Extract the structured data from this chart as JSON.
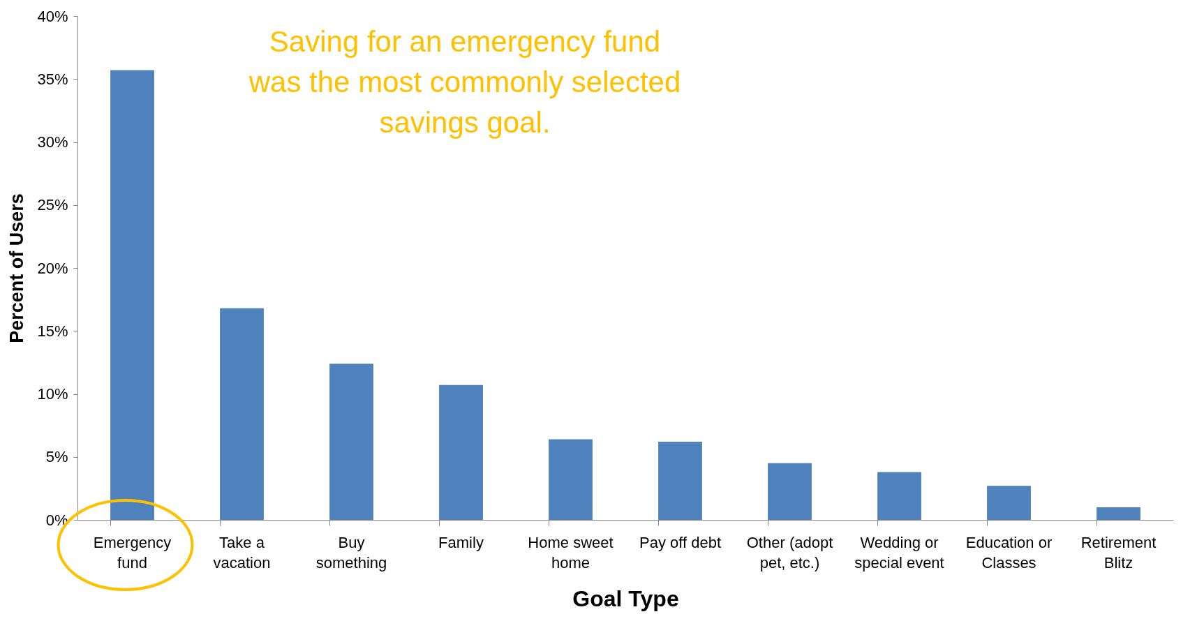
{
  "chart_data": {
    "type": "bar",
    "xlabel": "Goal Type",
    "ylabel": "Percent of Users",
    "categories": [
      "Emergency fund",
      "Take a vacation",
      "Buy something",
      "Family",
      "Home sweet home",
      "Pay off debt",
      "Other (adopt pet, etc.)",
      "Wedding or special event",
      "Education or Classes",
      "Retirement Blitz"
    ],
    "values": [
      35.7,
      16.8,
      12.4,
      10.7,
      6.4,
      6.2,
      4.5,
      3.8,
      2.7,
      1.0
    ],
    "color": "#4f81bd",
    "ylim": [
      0,
      40
    ],
    "yticks": [
      {
        "value": 0,
        "label": "0%"
      },
      {
        "value": 5,
        "label": "5%"
      },
      {
        "value": 10,
        "label": "10%"
      },
      {
        "value": 15,
        "label": "15%"
      },
      {
        "value": 20,
        "label": "20%"
      },
      {
        "value": 25,
        "label": "25%"
      },
      {
        "value": 30,
        "label": "30%"
      },
      {
        "value": 35,
        "label": "35%"
      },
      {
        "value": 40,
        "label": "40%"
      }
    ],
    "annotations": [
      "Saving for an emergency fund was the most commonly selected savings goal."
    ],
    "grid": false
  }
}
